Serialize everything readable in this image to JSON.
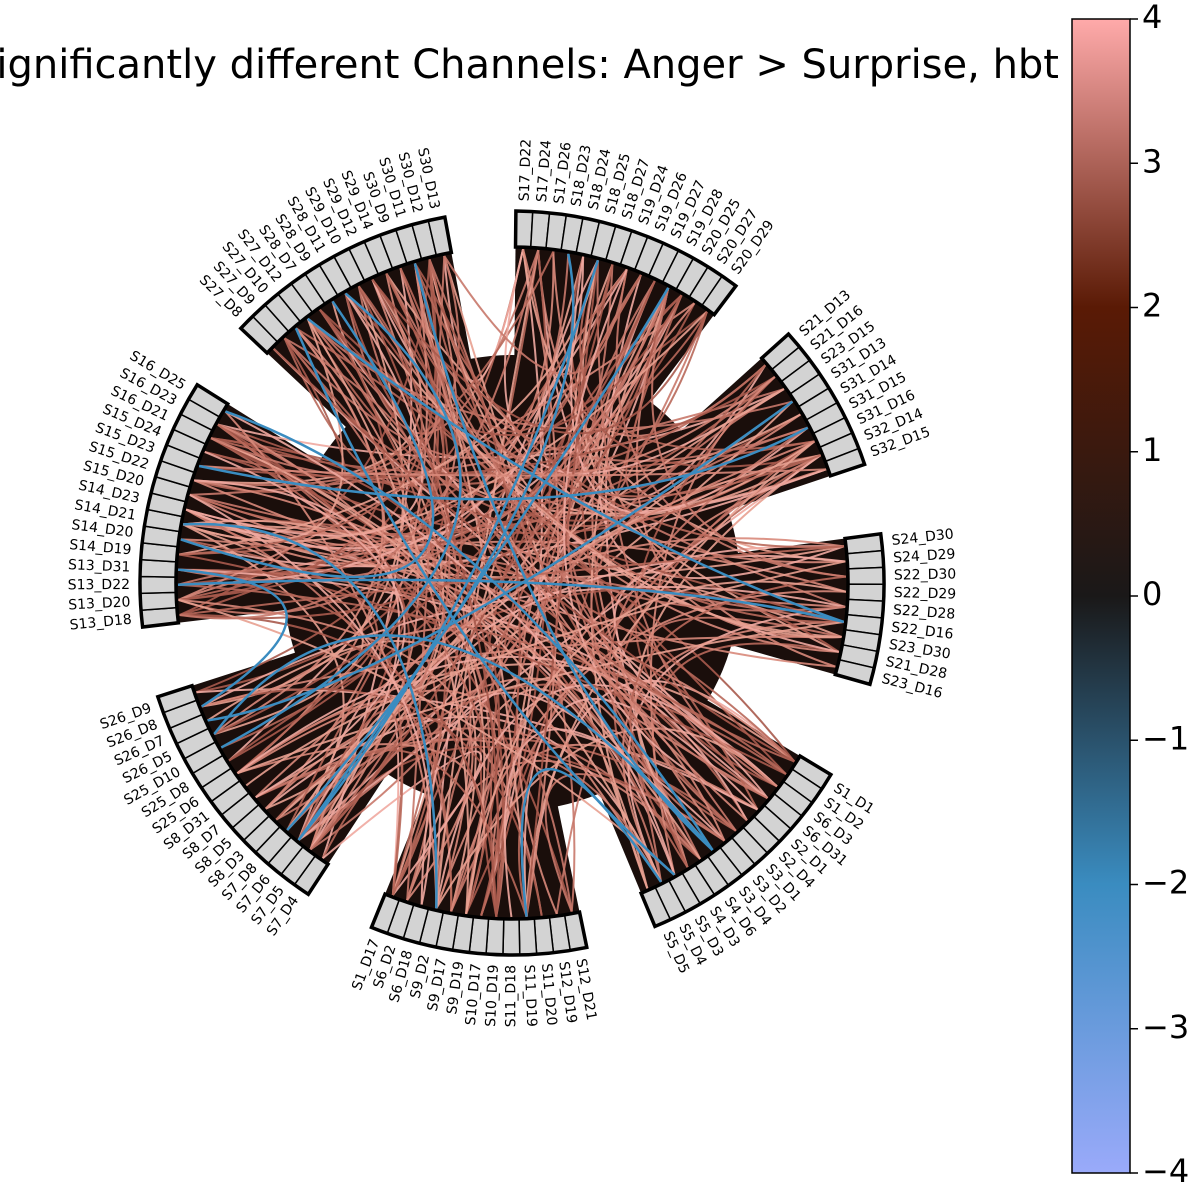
{
  "title": "Significantly different Channels: Anger > Surprise, hbt",
  "colorbar": {
    "ticks": [
      "4",
      "3",
      "2",
      "1",
      "0",
      "−1",
      "−2",
      "−3",
      "−4"
    ],
    "vmin": -4,
    "vmax": 4,
    "colors": [
      "#9aaafa",
      "#3a8cc0",
      "#1a1818",
      "#5a1a05",
      "#ffaaaa"
    ]
  },
  "colors": {
    "ring_fill": "#1a0e0b",
    "node_fill": "#d3d3d3",
    "node_edge": "#000000",
    "positive_edge": "#c8786a",
    "negative_edge": "#3a8cc0"
  },
  "groups": [
    [
      "S1_D1",
      "S1_D2",
      "S6_D3",
      "S6_D31",
      "S2_D1",
      "S2_D4",
      "S3_D1",
      "S3_D2",
      "S3_D4",
      "S4_D6",
      "S4_D3",
      "S5_D3",
      "S5_D4",
      "S5_D5"
    ],
    [
      "S12_D21",
      "S12_D19",
      "S11_D20",
      "S11_D19",
      "S11_D18",
      "S10_D19",
      "S10_D17",
      "S9_D19",
      "S9_D17",
      "S9_D2",
      "S6_D18",
      "S6_D2",
      "S1_D17"
    ],
    [
      "S7_D4",
      "S7_D5",
      "S7_D6",
      "S7_D8",
      "S8_D3",
      "S8_D5",
      "S8_D7",
      "S8_D31",
      "S25_D6",
      "S25_D8",
      "S25_D10",
      "S26_D5",
      "S26_D7",
      "S26_D8",
      "S26_D9"
    ],
    [
      "S13_D18",
      "S13_D20",
      "S13_D22",
      "S13_D31",
      "S14_D19",
      "S14_D20",
      "S14_D21",
      "S14_D23",
      "S15_D20",
      "S15_D22",
      "S15_D23",
      "S15_D24",
      "S16_D21",
      "S16_D23",
      "S16_D25"
    ],
    [
      "S27_D8",
      "S27_D9",
      "S27_D10",
      "S27_D12",
      "S28_D7",
      "S28_D9",
      "S28_D11",
      "S29_D10",
      "S29_D12",
      "S29_D14",
      "S30_D9",
      "S30_D11",
      "S30_D12",
      "S30_D13"
    ],
    [
      "S17_D22",
      "S17_D24",
      "S17_D26",
      "S18_D23",
      "S18_D24",
      "S18_D25",
      "S18_D27",
      "S19_D24",
      "S19_D26",
      "S19_D27",
      "S19_D28",
      "S20_D25",
      "S20_D27",
      "S20_D29"
    ],
    [
      "S21_D13",
      "S21_D16",
      "S23_D15",
      "S31_D13",
      "S31_D14",
      "S31_D15",
      "S31_D16",
      "S32_D14",
      "S32_D15"
    ],
    [
      "S24_D30",
      "S24_D29",
      "S22_D30",
      "S22_D29",
      "S22_D28",
      "S22_D16",
      "S23_D30",
      "S21_D28",
      "S23_D16"
    ]
  ]
}
